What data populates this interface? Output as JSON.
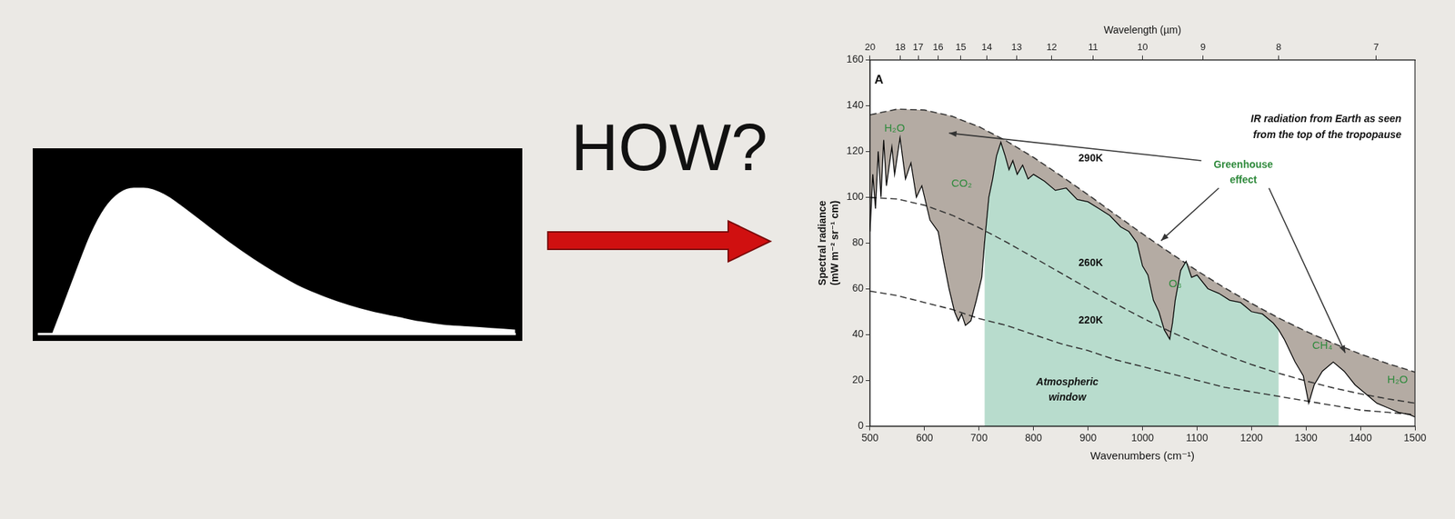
{
  "arrow_label": "HOW?",
  "chart_data": [
    {
      "type": "area",
      "x": [
        3,
        5,
        8,
        11,
        14,
        17,
        20,
        22,
        24,
        27,
        30,
        35,
        40,
        45,
        50,
        55,
        60,
        65,
        70,
        75,
        80,
        85,
        90,
        95,
        100
      ],
      "values": [
        0,
        15,
        38,
        60,
        76,
        85,
        88,
        88,
        87,
        83,
        77,
        66,
        55,
        45,
        36,
        28,
        22,
        17,
        13,
        10,
        7,
        5,
        4,
        3,
        2
      ],
      "color": "#ffffff",
      "xlim": [
        0,
        100
      ],
      "ylim": [
        0,
        100
      ],
      "grid": false,
      "tick_labels": false
    },
    {
      "type": "line",
      "xlabel": "Wavenumbers (cm⁻¹)",
      "ylabel": [
        "Spectral radiance",
        "(mW m⁻² sr⁻¹ cm)"
      ],
      "x2label": "Wavelength (µm)",
      "xlim": [
        500,
        1500
      ],
      "xticks": [
        500,
        600,
        700,
        800,
        900,
        1000,
        1100,
        1200,
        1300,
        1400,
        1500
      ],
      "x2lim": [
        500,
        1500
      ],
      "x2ticks": [
        {
          "value": 500,
          "label": "20"
        },
        {
          "value": 555.6,
          "label": "18"
        },
        {
          "value": 588.2,
          "label": "17"
        },
        {
          "value": 625,
          "label": "16"
        },
        {
          "value": 666.7,
          "label": "15"
        },
        {
          "value": 714.3,
          "label": "14"
        },
        {
          "value": 769.2,
          "label": "13"
        },
        {
          "value": 833.3,
          "label": "12"
        },
        {
          "value": 909.1,
          "label": "11"
        },
        {
          "value": 1000,
          "label": "10"
        },
        {
          "value": 1111.1,
          "label": "9"
        },
        {
          "value": 1250,
          "label": "8"
        },
        {
          "value": 1428.6,
          "label": "7"
        }
      ],
      "ylim": [
        0,
        160
      ],
      "yticks": [
        0,
        20,
        40,
        60,
        80,
        100,
        120,
        140,
        160
      ],
      "grid": false,
      "window": [
        710,
        1250
      ],
      "annotations": {
        "panel": "A",
        "caption": [
          "IR radiation from Earth as seen",
          "from the top of the tropopause"
        ],
        "greenhouse": [
          "Greenhouse",
          "effect"
        ],
        "window_label": [
          "Atmospheric",
          "window"
        ],
        "gases": [
          "H₂O",
          "CO₂",
          "O₃",
          "CH₄",
          "H₂O"
        ]
      },
      "series": [
        {
          "name": "290K",
          "color": "#333333",
          "line_style": "dashed",
          "x": [
            500,
            550,
            600,
            650,
            700,
            750,
            800,
            850,
            900,
            950,
            1000,
            1050,
            1100,
            1150,
            1200,
            1250,
            1300,
            1350,
            1400,
            1450,
            1500
          ],
          "values": [
            136,
            138.5,
            138.1,
            135.4,
            130.8,
            124.6,
            117.4,
            109.4,
            101.1,
            92.5,
            84,
            75.8,
            67.9,
            60.5,
            53.6,
            47.2,
            41.4,
            36.2,
            31.5,
            27.3,
            23.6
          ]
        },
        {
          "name": "260K",
          "color": "#333333",
          "line_style": "dashed",
          "x": [
            500,
            550,
            600,
            650,
            700,
            750,
            800,
            850,
            900,
            950,
            1000,
            1050,
            1100,
            1150,
            1200,
            1250,
            1300,
            1350,
            1400,
            1450,
            1500
          ],
          "values": [
            99.9,
            99.2,
            96.5,
            92.2,
            86.7,
            80.4,
            73.7,
            66.9,
            60.1,
            53.5,
            47.2,
            41.4,
            36.1,
            31.3,
            26.9,
            23.1,
            19.7,
            16.7,
            14.1,
            11.9,
            10
          ]
        },
        {
          "name": "220K",
          "color": "#333333",
          "line_style": "dashed",
          "x": [
            500,
            550,
            600,
            650,
            700,
            750,
            800,
            850,
            900,
            950,
            1000,
            1050,
            1100,
            1150,
            1200,
            1250,
            1300,
            1350,
            1400,
            1450,
            1500
          ],
          "values": [
            59,
            57,
            54,
            51,
            47,
            44,
            40,
            36,
            33,
            29,
            26,
            23,
            20,
            17,
            15,
            13,
            11,
            9,
            7,
            6,
            5
          ]
        },
        {
          "color": "#000000",
          "line_style": "solid",
          "x": [
            500,
            505,
            510,
            515,
            520,
            525,
            530,
            540,
            545,
            555,
            565,
            575,
            585,
            595,
            610,
            625,
            635,
            645,
            655,
            662,
            668,
            675,
            685,
            695,
            705,
            710,
            718,
            725,
            732,
            740,
            748,
            755,
            762,
            770,
            780,
            790,
            800,
            820,
            840,
            860,
            880,
            900,
            920,
            940,
            960,
            975,
            990,
            1000,
            1010,
            1020,
            1030,
            1040,
            1050,
            1055,
            1060,
            1070,
            1080,
            1090,
            1100,
            1120,
            1140,
            1160,
            1180,
            1200,
            1220,
            1240,
            1250,
            1260,
            1280,
            1295,
            1305,
            1315,
            1330,
            1350,
            1370,
            1390,
            1410,
            1430,
            1450,
            1470,
            1490,
            1500
          ],
          "values": [
            85,
            110,
            95,
            120,
            100,
            125,
            105,
            122,
            110,
            126,
            108,
            115,
            100,
            105,
            90,
            85,
            72,
            60,
            50,
            46,
            49,
            44,
            46,
            55,
            65,
            80,
            100,
            108,
            118,
            124,
            118,
            112,
            116,
            110,
            114,
            108,
            110,
            107,
            103,
            104,
            99,
            98,
            95,
            92,
            87,
            85,
            80,
            70,
            66,
            55,
            50,
            42,
            38,
            45,
            55,
            68,
            72,
            65,
            66,
            60,
            58,
            55,
            54,
            50,
            49,
            45,
            42,
            38,
            28,
            22,
            10,
            18,
            24,
            28,
            24,
            18,
            14,
            10,
            8,
            6,
            5,
            4
          ]
        }
      ]
    }
  ]
}
